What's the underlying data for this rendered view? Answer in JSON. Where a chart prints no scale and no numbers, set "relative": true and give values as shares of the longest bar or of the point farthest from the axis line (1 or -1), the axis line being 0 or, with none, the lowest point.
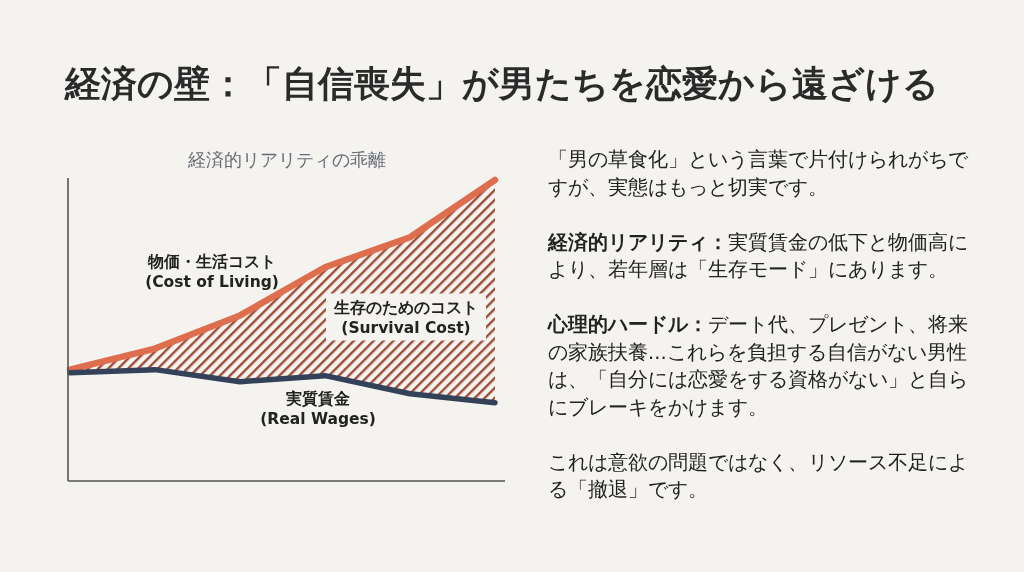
{
  "chart_data": {
    "type": "line",
    "title": "経済の壁：「自信喪失」が男たちを恋愛から遠ざける",
    "subtitle": "経済的リアリティの乖離",
    "relative": true,
    "categories": [
      null,
      null,
      null,
      null,
      null,
      null
    ],
    "series": [
      {
        "name": "物価・生活コスト\n(Cost of Living)",
        "color": "#df6e4f",
        "values": [
          0.37,
          0.44,
          0.55,
          0.71,
          0.81,
          1
        ],
        "lower": [
          0.36,
          0.37,
          0.33,
          0.35,
          0.29,
          0.26
        ],
        "upper": [
          0.37,
          0.44,
          0.55,
          0.71,
          0.81,
          1
        ]
      },
      {
        "name": "実質賃金\n(Real Wages)",
        "color": "#344259",
        "values": [
          0.36,
          0.37,
          0.33,
          0.35,
          0.29,
          0.26
        ]
      }
    ],
    "annotations": [
      "生存のためのコスト\n(Survival Cost)",
      "「男の草食化」という言葉で片付けられがちですが、実態はもっと切実です。",
      "経済的リアリティ：実質賃金の低下と物価高により、若年層は「生存モード」にあります。",
      "心理的ハードル：デート代、プレゼント、将来の家族扶養...これらを負担する自信がない男性は、「自分には恋愛をする資格がない」と自らにブレーキをかけます。",
      "これは意欲の問題ではなく、リソース不足による「撤退」です。"
    ]
  }
}
